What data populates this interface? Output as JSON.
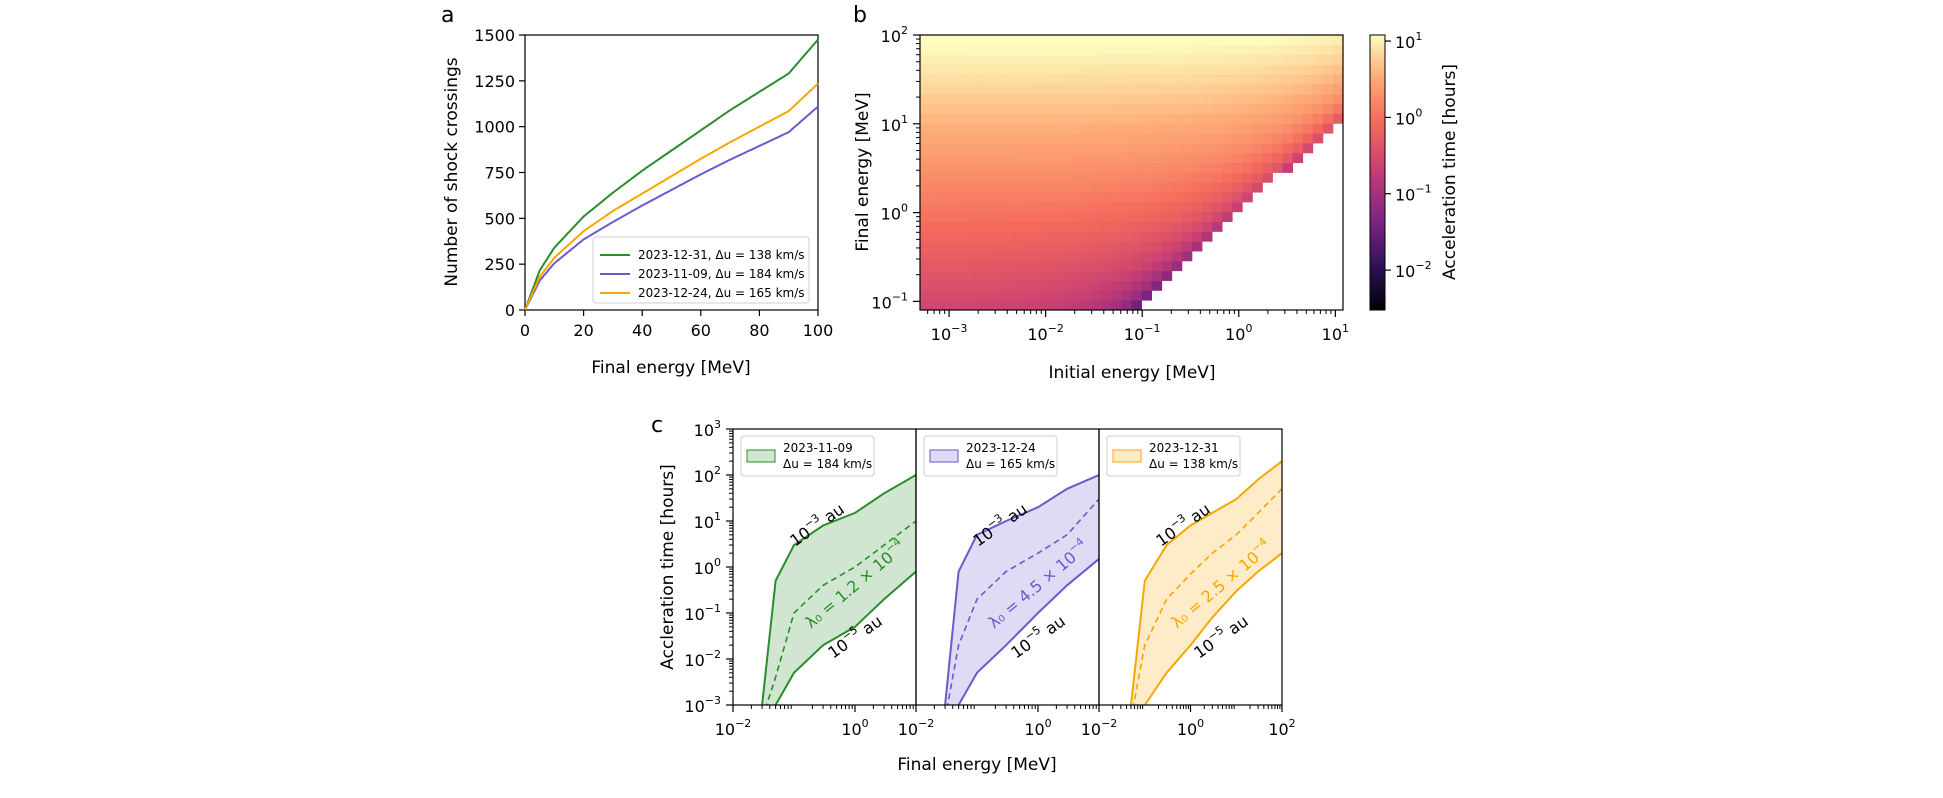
{
  "panels": {
    "a": {
      "letter": "a",
      "xlabel": "Final energy [MeV]",
      "ylabel": "Number of shock crossings",
      "xlim": [
        0,
        100
      ],
      "ylim": [
        0,
        1500
      ],
      "xticks": [
        "0",
        "20",
        "40",
        "60",
        "80",
        "100"
      ],
      "yticks": [
        "0",
        "250",
        "500",
        "750",
        "1000",
        "1250",
        "1500"
      ]
    },
    "b": {
      "letter": "b",
      "xlabel": "Initial energy [MeV]",
      "ylabel": "Final energy [MeV]",
      "cbar_label": "Acceleration time [hours]",
      "xticks": [
        {
          "b": "10",
          "e": "−3"
        },
        {
          "b": "10",
          "e": "−2"
        },
        {
          "b": "10",
          "e": "−1"
        },
        {
          "b": "10",
          "e": "0"
        },
        {
          "b": "10",
          "e": "1"
        }
      ],
      "yticks": [
        {
          "b": "10",
          "e": "−1"
        },
        {
          "b": "10",
          "e": "0"
        },
        {
          "b": "10",
          "e": "1"
        },
        {
          "b": "10",
          "e": "2"
        }
      ],
      "cticks": [
        {
          "b": "10",
          "e": "−2"
        },
        {
          "b": "10",
          "e": "−1"
        },
        {
          "b": "10",
          "e": "0"
        },
        {
          "b": "10",
          "e": "1"
        }
      ]
    },
    "c": {
      "letter": "c",
      "xlabel": "Final energy [MeV]",
      "ylabel": "Accleration time [hours]",
      "yticks": [
        {
          "b": "10",
          "e": "−3"
        },
        {
          "b": "10",
          "e": "−2"
        },
        {
          "b": "10",
          "e": "−1"
        },
        {
          "b": "10",
          "e": "0"
        },
        {
          "b": "10",
          "e": "1"
        },
        {
          "b": "10",
          "e": "2"
        },
        {
          "b": "10",
          "e": "3"
        }
      ],
      "xticks": [
        {
          "b": "10",
          "e": "−2"
        },
        {
          "b": "10",
          "e": "0"
        },
        {
          "b": "10",
          "e": "−2"
        },
        {
          "b": "10",
          "e": "0"
        },
        {
          "b": "10",
          "e": "−2"
        },
        {
          "b": "10",
          "e": "0"
        },
        {
          "b": "10",
          "e": "2"
        }
      ],
      "upper_label": {
        "b": "10",
        "e": "−3",
        "u": " au"
      },
      "lower_label": {
        "b": "10",
        "e": "−5",
        "u": " au"
      },
      "subpanels": [
        {
          "legend_line1": "2023-11-09",
          "legend_line2": "Δu = 184 km/s",
          "lambda_label": "λ₀ = 1.2 × 10",
          "lambda_exp": "−4"
        },
        {
          "legend_line1": "2023-12-24",
          "legend_line2": "Δu = 165 km/s",
          "lambda_label": "λ₀ = 4.5 × 10",
          "lambda_exp": "−4"
        },
        {
          "legend_line1": "2023-12-31",
          "legend_line2": "Δu = 138 km/s",
          "lambda_label": "λ₀ = 2.5 × 10",
          "lambda_exp": "−4"
        }
      ]
    }
  },
  "chart_data": [
    {
      "type": "line",
      "xlabel": "Final energy [MeV]",
      "ylabel": "Number of shock crossings",
      "xlim": [
        0,
        100
      ],
      "ylim": [
        0,
        1500
      ],
      "grid": false,
      "legend_placement": "lower-right",
      "x": [
        0,
        5,
        10,
        20,
        30,
        40,
        50,
        60,
        70,
        80,
        90,
        100
      ],
      "series": [
        {
          "name": "2023-12-31, Δu = 138 km/s",
          "color": "#2a8c2a",
          "values": [
            0,
            215,
            340,
            510,
            640,
            760,
            870,
            980,
            1090,
            1190,
            1290,
            1475
          ]
        },
        {
          "name": "2023-11-09, Δu = 184 km/s",
          "color": "#6a5acd",
          "values": [
            0,
            160,
            255,
            385,
            480,
            570,
            655,
            740,
            820,
            895,
            970,
            1110
          ]
        },
        {
          "name": "2023-12-24, Δu = 165 km/s",
          "color": "#f5a700",
          "values": [
            0,
            180,
            285,
            430,
            540,
            635,
            730,
            825,
            915,
            1000,
            1085,
            1235
          ]
        }
      ]
    },
    {
      "type": "heatmap",
      "xlabel": "Initial energy [MeV]",
      "ylabel": "Final energy [MeV]",
      "colorbar_label": "Acceleration time [hours]",
      "x_scale": "log",
      "y_scale": "log",
      "xlim": [
        0.0005,
        12
      ],
      "ylim": [
        0.08,
        100
      ],
      "colorbar_range": [
        0.003,
        12
      ],
      "colormap": "magma",
      "note_values": "empty where final energy < initial energy"
    },
    {
      "type": "area",
      "xlabel": "Final energy [MeV]",
      "ylabel": "Accleration time [hours]",
      "x_scale": "log",
      "y_scale": "log",
      "ylim": [
        0.001,
        1000
      ],
      "subplots": [
        {
          "name": "2023-11-09, Δu = 184 km/s",
          "color": "#2a8c2a",
          "xlim": [
            0.01,
            10
          ],
          "x": [
            0.03,
            0.05,
            0.1,
            0.3,
            1,
            3,
            10
          ],
          "upper_1e-3au": [
            0.001,
            0.5,
            3,
            8,
            15,
            40,
            100
          ],
          "lambda0_1.2e-4": [
            0.0005,
            0.004,
            0.1,
            0.4,
            1,
            3,
            10
          ],
          "lower_1e-5au": [
            0.0003,
            0.001,
            0.005,
            0.02,
            0.05,
            0.2,
            0.8
          ]
        },
        {
          "name": "2023-12-24, Δu = 165 km/s",
          "color": "#6a5acd",
          "xlim": [
            0.01,
            10
          ],
          "x": [
            0.03,
            0.05,
            0.1,
            0.3,
            1,
            3,
            10
          ],
          "upper_1e-3au": [
            0.001,
            0.8,
            5,
            10,
            20,
            50,
            100
          ],
          "lambda0_4.5e-4": [
            0.0005,
            0.02,
            0.2,
            0.8,
            2,
            5,
            30
          ],
          "lower_1e-5au": [
            0.0003,
            0.001,
            0.005,
            0.02,
            0.1,
            0.4,
            1.5
          ]
        },
        {
          "name": "2023-12-31, Δu = 138 km/s",
          "color": "#f5a700",
          "xlim": [
            0.01,
            100
          ],
          "x": [
            0.05,
            0.1,
            0.3,
            1,
            3,
            10,
            30,
            100
          ],
          "upper_1e-3au": [
            0.001,
            0.5,
            3,
            8,
            15,
            30,
            80,
            200
          ],
          "lambda0_2.5e-4": [
            0.0005,
            0.02,
            0.2,
            0.7,
            2,
            5,
            15,
            50
          ],
          "lower_1e-5au": [
            0.0003,
            0.001,
            0.005,
            0.02,
            0.08,
            0.3,
            0.8,
            2
          ]
        }
      ]
    }
  ]
}
